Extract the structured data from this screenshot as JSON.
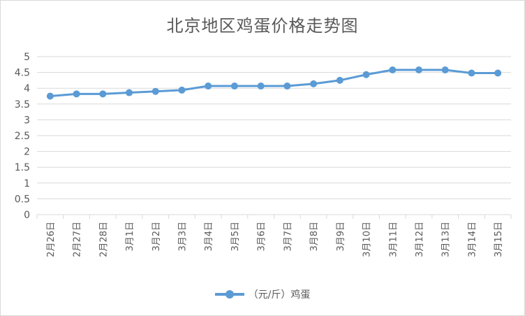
{
  "chart_data": {
    "type": "line",
    "title": "北京地区鸡蛋价格走势图",
    "categories": [
      "2月26日",
      "2月27日",
      "2月28日",
      "3月1日",
      "3月2日",
      "3月3日",
      "3月4日",
      "3月5日",
      "3月6日",
      "3月7日",
      "3月8日",
      "3月9日",
      "3月10日",
      "3月11日",
      "3月12日",
      "3月13日",
      "3月14日",
      "3月15日"
    ],
    "series": [
      {
        "name": "（元/斤）鸡蛋",
        "values": [
          3.75,
          3.82,
          3.82,
          3.86,
          3.9,
          3.94,
          4.07,
          4.07,
          4.07,
          4.07,
          4.14,
          4.25,
          4.43,
          4.58,
          4.58,
          4.58,
          4.48,
          4.48
        ]
      }
    ],
    "yticks": [
      "0",
      "0.5",
      "1",
      "1.5",
      "2",
      "2.5",
      "3",
      "3.5",
      "4",
      "4.5",
      "5"
    ],
    "ylim": [
      0,
      5
    ],
    "grid": true,
    "legend": "bottom",
    "colors": {
      "series": "#5b9bd5",
      "grid": "#d9d9d9"
    }
  },
  "legend_label": "（元/斤）鸡蛋"
}
